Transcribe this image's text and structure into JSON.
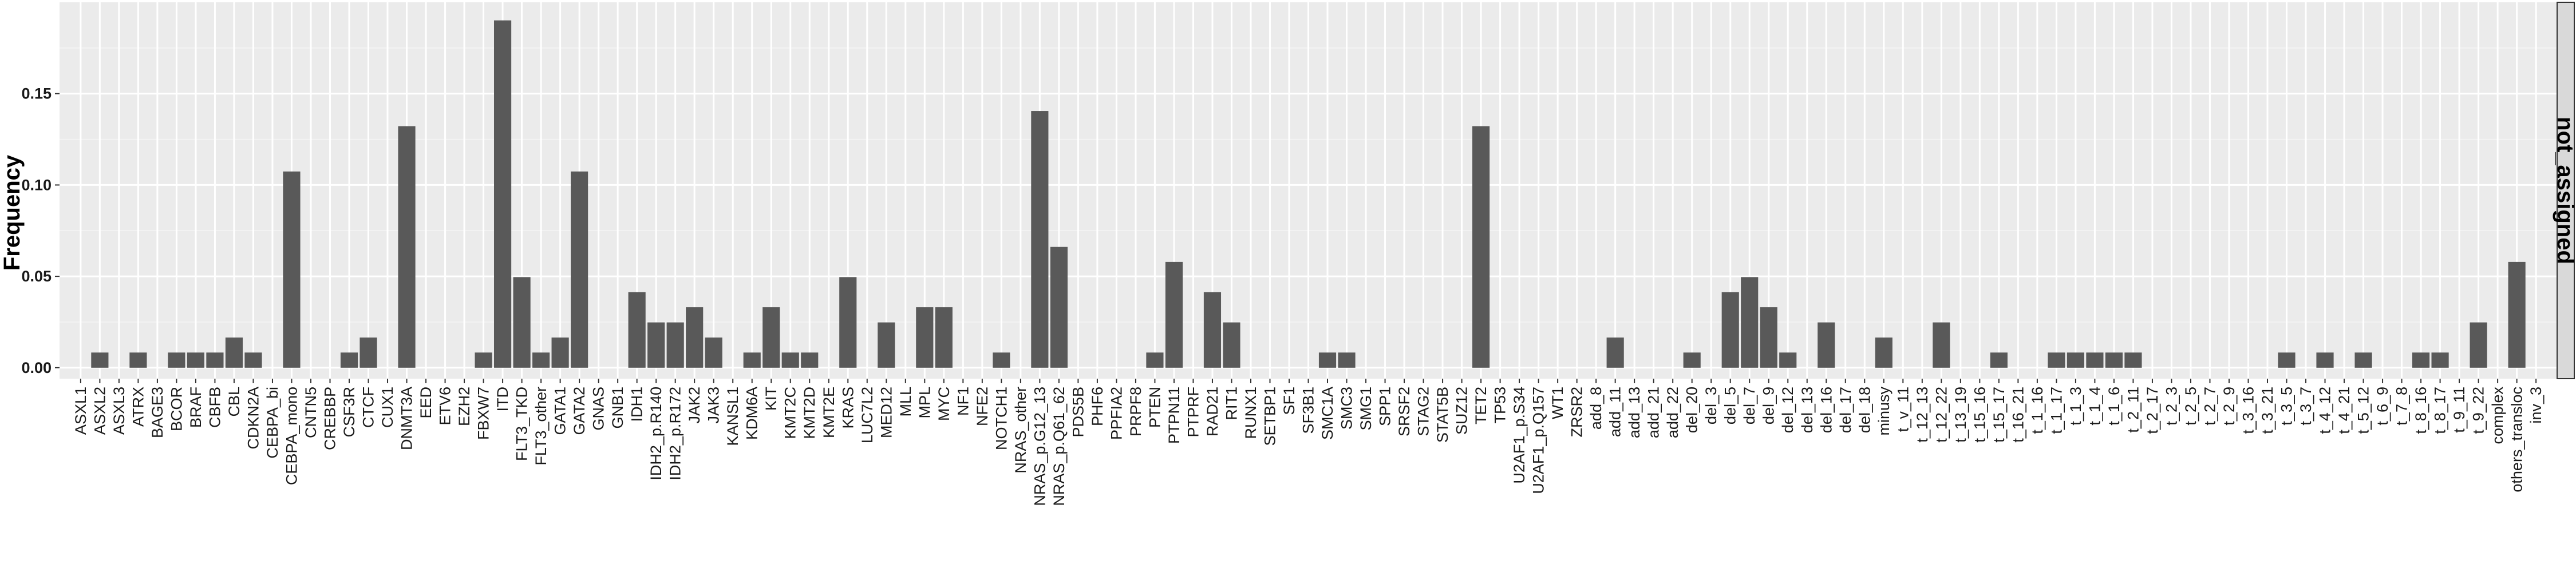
{
  "chart_data": {
    "type": "bar",
    "title": "",
    "xlabel": "",
    "ylabel": "Frequency",
    "ylim": [
      -0.006,
      0.2
    ],
    "yticks": [
      0.0,
      0.05,
      0.1,
      0.15
    ],
    "ytick_labels": [
      "0.00",
      "0.05",
      "0.10",
      "0.15"
    ],
    "grid": true,
    "facet_label": "not_assigned",
    "colors": {
      "bar": "#595959",
      "panel_bg": "#ebebeb",
      "grid_major": "#ffffff",
      "grid_minor": "#f5f5f5",
      "strip_bg": "#d9d9d9",
      "strip_border": "#333333"
    },
    "categories": [
      "ASXL1",
      "ASXL2",
      "ASXL3",
      "ATRX",
      "BAGE3",
      "BCOR",
      "BRAF",
      "CBFB",
      "CBL",
      "CDKN2A",
      "CEBPA_bi",
      "CEBPA_mono",
      "CNTN5",
      "CREBBP",
      "CSF3R",
      "CTCF",
      "CUX1",
      "DNMT3A",
      "EED",
      "ETV6",
      "EZH2",
      "FBXW7",
      "ITD",
      "FLT3_TKD",
      "FLT3_other",
      "GATA1",
      "GATA2",
      "GNAS",
      "GNB1",
      "IDH1",
      "IDH2_p.R140",
      "IDH2_p.R172",
      "JAK2",
      "JAK3",
      "KANSL1",
      "KDM6A",
      "KIT",
      "KMT2C",
      "KMT2D",
      "KMT2E",
      "KRAS",
      "LUC7L2",
      "MED12",
      "MLL",
      "MPL",
      "MYC",
      "NF1",
      "NFE2",
      "NOTCH1",
      "NRAS_other",
      "NRAS_p.G12_13",
      "NRAS_p.Q61_62",
      "PDS5B",
      "PHF6",
      "PPFIA2",
      "PRPF8",
      "PTEN",
      "PTPN11",
      "PTPRF",
      "RAD21",
      "RIT1",
      "RUNX1",
      "SETBP1",
      "SF1",
      "SF3B1",
      "SMC1A",
      "SMC3",
      "SMG1",
      "SPP1",
      "SRSF2",
      "STAG2",
      "STAT5B",
      "SUZ12",
      "TET2",
      "TP53",
      "U2AF1_p.S34",
      "U2AF1_p.Q157",
      "WT1",
      "ZRSR2",
      "add_8",
      "add_11",
      "add_13",
      "add_21",
      "add_22",
      "del_20",
      "del_3",
      "del_5",
      "del_7",
      "del_9",
      "del_12",
      "del_13",
      "del_16",
      "del_17",
      "del_18",
      "minusy",
      "t_v_11",
      "t_12_13",
      "t_12_22",
      "t_13_19",
      "t_15_16",
      "t_15_17",
      "t_16_21",
      "t_1_16",
      "t_1_17",
      "t_1_3",
      "t_1_4",
      "t_1_6",
      "t_2_11",
      "t_2_17",
      "t_2_3",
      "t_2_5",
      "t_2_7",
      "t_2_9",
      "t_3_16",
      "t_3_21",
      "t_3_5",
      "t_3_7",
      "t_4_12",
      "t_4_21",
      "t_5_12",
      "t_6_9",
      "t_7_8",
      "t_8_16",
      "t_8_17",
      "t_9_11",
      "t_9_22",
      "complex",
      "others_transloc",
      "inv_3"
    ],
    "values": [
      0,
      0.0083,
      0,
      0.0083,
      0,
      0.0083,
      0.0083,
      0.0083,
      0.0165,
      0.0083,
      0,
      0.1074,
      0,
      0,
      0.0083,
      0.0165,
      0,
      0.1322,
      0,
      0,
      0,
      0.0083,
      0.1901,
      0.0496,
      0.0083,
      0.0165,
      0.1074,
      0,
      0,
      0.0413,
      0.0248,
      0.0248,
      0.0331,
      0.0165,
      0,
      0.0083,
      0.0331,
      0.0083,
      0.0083,
      0,
      0.0496,
      0,
      0.0248,
      0,
      0.0331,
      0.0331,
      0,
      0,
      0.0083,
      0,
      0.1405,
      0.0661,
      0,
      0,
      0,
      0,
      0.0083,
      0.0579,
      0,
      0.0413,
      0.0248,
      0,
      0,
      0,
      0,
      0.0083,
      0.0083,
      0,
      0,
      0,
      0,
      0,
      0,
      0.1322,
      0,
      0,
      0,
      0,
      0,
      0,
      0.0165,
      0,
      0,
      0,
      0.0083,
      0,
      0.0413,
      0.0496,
      0.0331,
      0.0083,
      0,
      0.0248,
      0,
      0,
      0.0165,
      0,
      0,
      0.0248,
      0,
      0,
      0.0083,
      0,
      0,
      0.0083,
      0.0083,
      0.0083,
      0.0083,
      0.0083,
      0,
      0,
      0,
      0,
      0,
      0,
      0,
      0.0083,
      0,
      0.0083,
      0,
      0.0083,
      0,
      0,
      0.0083,
      0.0083,
      0,
      0.0248,
      0,
      0.0579,
      0
    ]
  }
}
